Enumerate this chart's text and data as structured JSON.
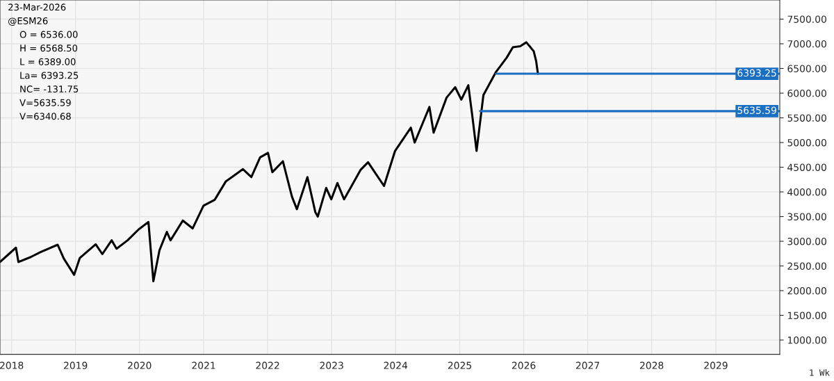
{
  "chart_data": {
    "type": "line",
    "xlim": [
      "2017-10-27",
      "2030-01-01"
    ],
    "ylim": [
      710,
      7887
    ],
    "xticks": [
      {
        "value": "2018-01-01",
        "label": "2018"
      },
      {
        "value": "2019-01-01",
        "label": "2019"
      },
      {
        "value": "2020-01-01",
        "label": "2020"
      },
      {
        "value": "2021-01-01",
        "label": "2021"
      },
      {
        "value": "2022-01-01",
        "label": "2022"
      },
      {
        "value": "2023-01-01",
        "label": "2023"
      },
      {
        "value": "2024-01-01",
        "label": "2024"
      },
      {
        "value": "2025-01-01",
        "label": "2025"
      },
      {
        "value": "2026-01-01",
        "label": "2026"
      },
      {
        "value": "2027-01-01",
        "label": "2027"
      },
      {
        "value": "2028-01-01",
        "label": "2028"
      },
      {
        "value": "2029-01-01",
        "label": "2029"
      }
    ],
    "yticks": [
      {
        "value": 1000,
        "label": "1000.00"
      },
      {
        "value": 1500,
        "label": "1500.00"
      },
      {
        "value": 2000,
        "label": "2000.00"
      },
      {
        "value": 2500,
        "label": "2500.00"
      },
      {
        "value": 3000,
        "label": "3000.00"
      },
      {
        "value": 3500,
        "label": "3500.00"
      },
      {
        "value": 4000,
        "label": "4000.00"
      },
      {
        "value": 4500,
        "label": "4500.00"
      },
      {
        "value": 5000,
        "label": "5000.00"
      },
      {
        "value": 5500,
        "label": "5500.00"
      },
      {
        "value": 6000,
        "label": "6000.00"
      },
      {
        "value": 6500,
        "label": "6500.00"
      },
      {
        "value": 7000,
        "label": "7000.00"
      },
      {
        "value": 7500,
        "label": "7500.00"
      }
    ],
    "grid": true,
    "series": [
      {
        "color": "#000000",
        "x": [
          "2017-10-27",
          "2018-01-26",
          "2018-02-09",
          "2018-04-20",
          "2018-06-15",
          "2018-09-21",
          "2018-10-26",
          "2018-12-24",
          "2019-01-25",
          "2019-04-26",
          "2019-06-03",
          "2019-07-26",
          "2019-08-23",
          "2019-10-25",
          "2019-12-27",
          "2020-02-21",
          "2020-03-20",
          "2020-04-24",
          "2020-06-05",
          "2020-06-26",
          "2020-09-04",
          "2020-10-30",
          "2020-12-31",
          "2021-03-05",
          "2021-05-07",
          "2021-08-13",
          "2021-09-30",
          "2021-11-19",
          "2022-01-03",
          "2022-01-28",
          "2022-03-29",
          "2022-05-20",
          "2022-06-17",
          "2022-08-16",
          "2022-09-30",
          "2022-10-14",
          "2022-12-01",
          "2022-12-30",
          "2023-02-03",
          "2023-03-13",
          "2023-06-16",
          "2023-07-28",
          "2023-10-27",
          "2023-12-29",
          "2024-03-28",
          "2024-04-19",
          "2024-07-12",
          "2024-08-05",
          "2024-10-18",
          "2024-12-06",
          "2025-01-10",
          "2025-02-19",
          "2025-03-14",
          "2025-04-07",
          "2025-05-16",
          "2025-07-25",
          "2025-09-26",
          "2025-10-31",
          "2025-12-12",
          "2026-01-16",
          "2026-02-27",
          "2026-03-13",
          "2026-03-23"
        ],
        "values": [
          2580,
          2870,
          2580,
          2680,
          2780,
          2930,
          2650,
          2320,
          2660,
          2940,
          2740,
          3020,
          2850,
          3020,
          3240,
          3390,
          2190,
          2820,
          3190,
          3020,
          3420,
          3260,
          3720,
          3840,
          4210,
          4460,
          4300,
          4700,
          4790,
          4400,
          4620,
          3900,
          3650,
          4300,
          3590,
          3500,
          4080,
          3850,
          4180,
          3850,
          4450,
          4600,
          4120,
          4830,
          5300,
          5000,
          5720,
          5200,
          5910,
          6120,
          5870,
          6160,
          5530,
          4830,
          5960,
          6420,
          6720,
          6930,
          6950,
          7030,
          6850,
          6650,
          6393.25
        ]
      },
      {
        "color": "#1a6fc0",
        "x": [
          "2025-07-27",
          "2030-01-01"
        ],
        "values": [
          6393.25,
          6393.25
        ],
        "value_labels": [
          null,
          "6393.25"
        ]
      },
      {
        "color": "#1a6fc0",
        "x": [
          "2025-04-27",
          "2030-01-01"
        ],
        "values": [
          5635.59,
          5635.59
        ],
        "value_labels": [
          null,
          "5635.59"
        ]
      }
    ],
    "annotations": [
      "23-Mar-2026",
      "@ESM26",
      "O = 6536.00",
      "H = 6568.50",
      "L = 6389.00",
      "La= 6393.25",
      "NC= -131.75",
      "V=5635.59",
      "V=6340.68",
      "1 Wk"
    ]
  }
}
